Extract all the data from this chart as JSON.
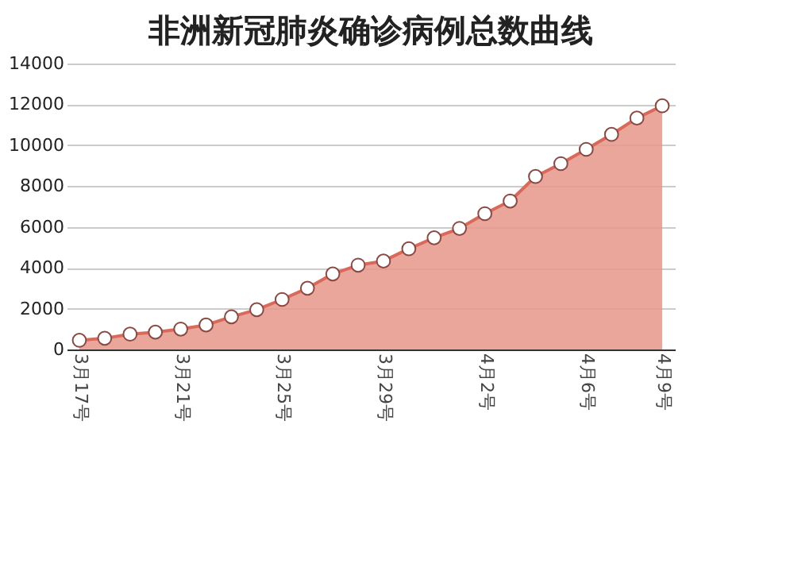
{
  "chart_data": {
    "type": "area",
    "title": "非洲新冠肺炎确诊病例总数曲线",
    "categories": [
      "3月17号",
      null,
      null,
      null,
      "3月21号",
      null,
      null,
      null,
      "3月25号",
      null,
      null,
      null,
      "3月29号",
      null,
      null,
      null,
      "4月2号",
      null,
      null,
      null,
      "4月6号",
      null,
      null,
      "4月9号"
    ],
    "series": [
      {
        "color": "#e8968a",
        "values": [
          450,
          550,
          750,
          850,
          1000,
          1200,
          1600,
          1950,
          2450,
          3000,
          3700,
          4130,
          4330,
          4930,
          5470,
          5930,
          6650,
          7270,
          8470,
          9100,
          9800,
          10530,
          11330,
          11930
        ]
      }
    ],
    "ylim": [
      0,
      14000
    ],
    "yticks": [
      0,
      2000,
      4000,
      6000,
      8000,
      10000,
      12000,
      14000
    ],
    "grid": "y",
    "marker": "circle",
    "line_style": "solid"
  }
}
